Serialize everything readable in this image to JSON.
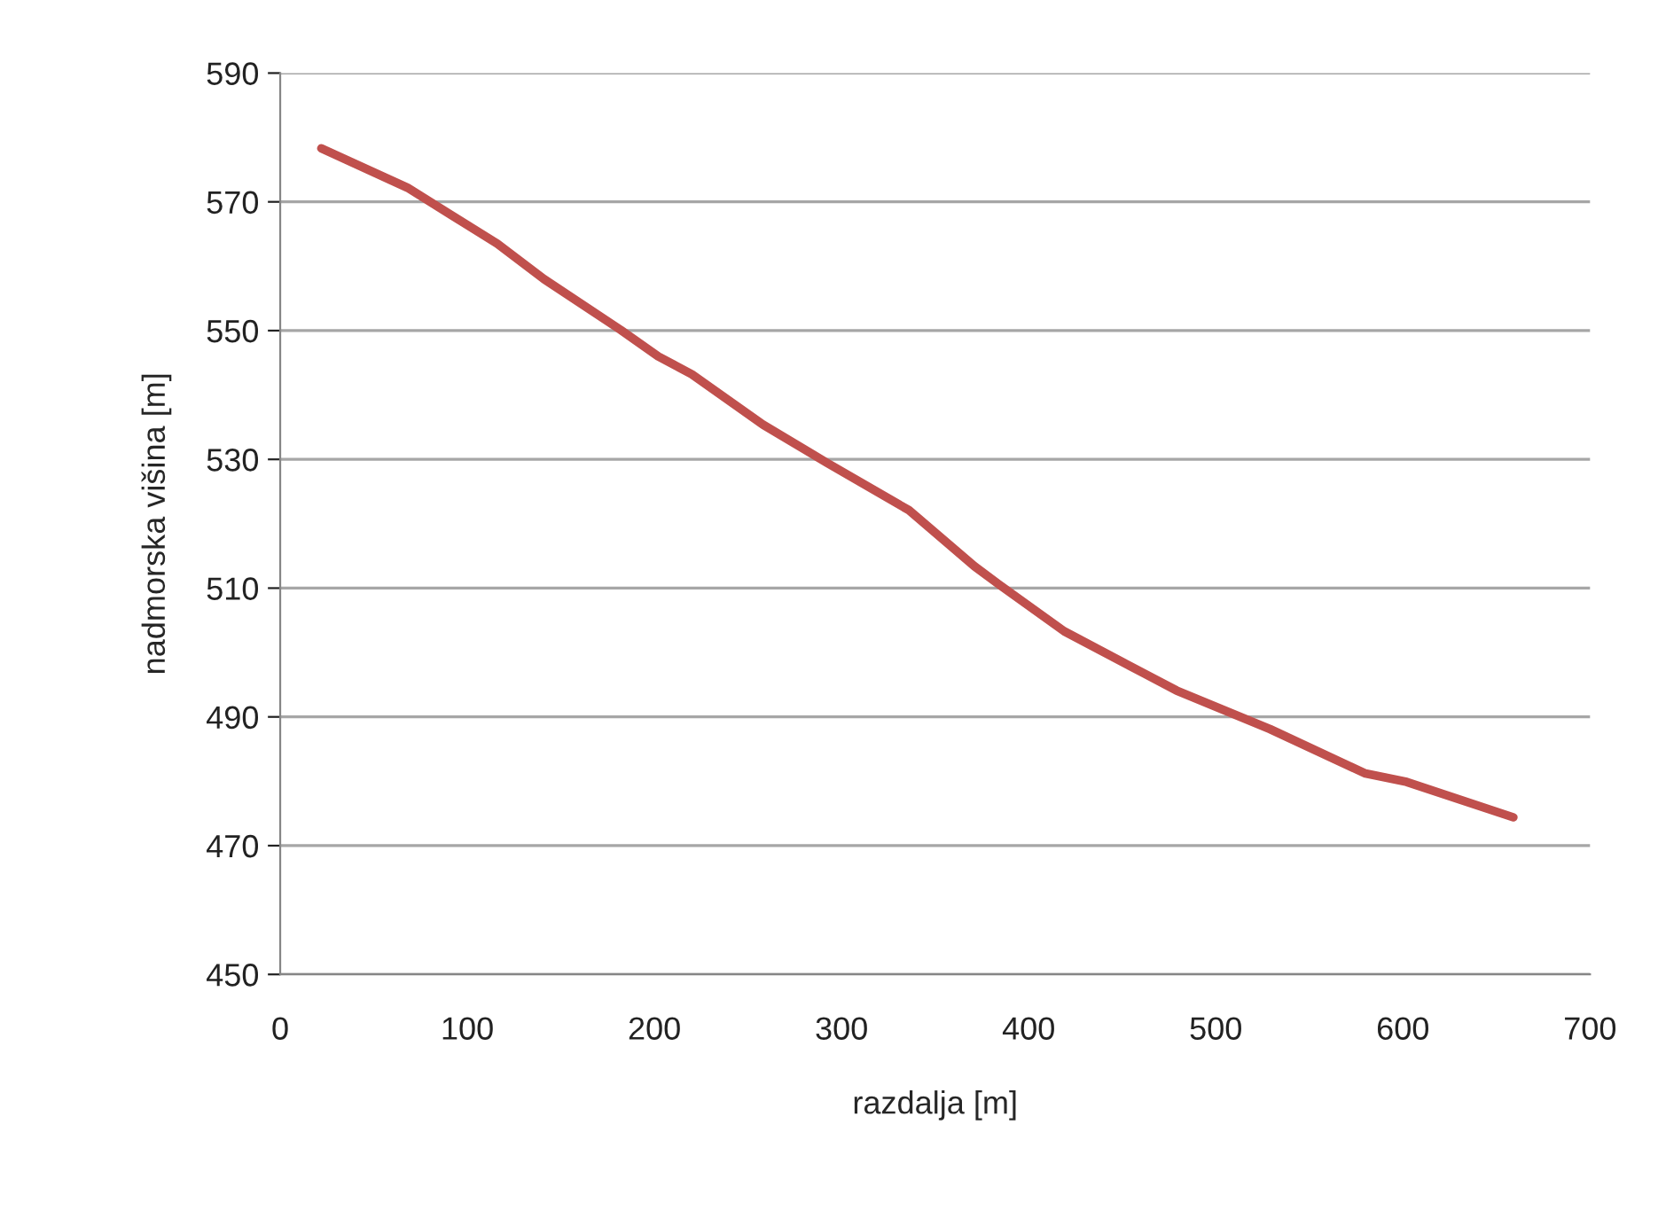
{
  "chart_data": {
    "type": "line",
    "xlabel": "razdalja [m]",
    "ylabel": "nadmorska višina [m]",
    "x": [
      22,
      68,
      116,
      141,
      182,
      202,
      220,
      258,
      292,
      336,
      371,
      384,
      419,
      479,
      529,
      580,
      602,
      659
    ],
    "series": [
      {
        "color": "#c0504d",
        "values": [
          578.3,
          572.2,
          563.5,
          558.0,
          550.1,
          546.0,
          543.2,
          535.4,
          529.5,
          522.1,
          513.4,
          510.6,
          503.3,
          494.1,
          488.1,
          481.2,
          479.9,
          474.4
        ]
      }
    ],
    "xlim": [
      0,
      700
    ],
    "xticks": [
      0,
      100,
      200,
      300,
      400,
      500,
      600,
      700
    ],
    "ylim": [
      450,
      590
    ],
    "yticks": [
      450,
      470,
      490,
      510,
      530,
      550,
      570,
      590
    ],
    "grid": "y",
    "legend": false,
    "marker": "none",
    "line_style": "solid"
  }
}
